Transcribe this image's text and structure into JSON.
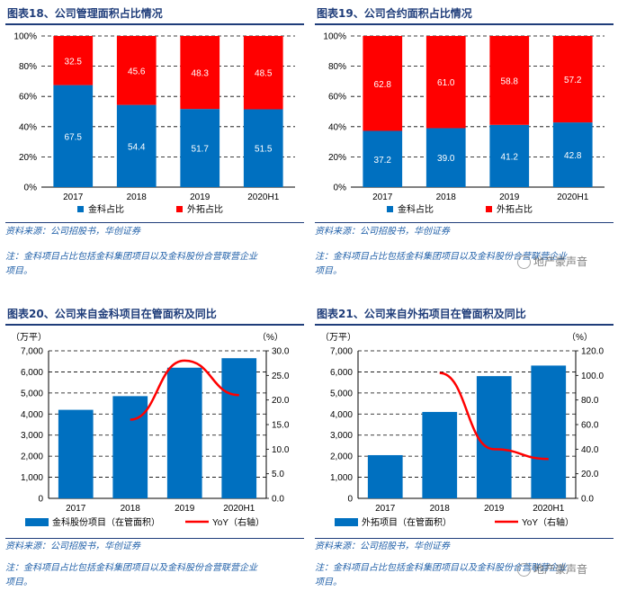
{
  "panels": [
    {
      "title": "图表18、公司管理面积占比情况",
      "source": "资料来源：公司招股书，华创证券",
      "note_line1": "注：金科项目占比包括金科集团项目以及金科股份合营联营企业",
      "note_line2": "项目。"
    },
    {
      "title": "图表19、公司合约面积占比情况",
      "source": "资料来源：公司招股书，华创证券",
      "note_line1": "注：金科项目占比包括金科集团项目以及金科股份合营联营企业",
      "note_line2": "项目。"
    },
    {
      "title": "图表20、公司来自金科项目在管面积及同比",
      "source": "资料来源：公司招股书，华创证券",
      "note_line1": "注：金科项目占比包括金科集团项目以及金科股份合营联营企业",
      "note_line2": "项目。"
    },
    {
      "title": "图表21、公司来自外拓项目在管面积及同比",
      "source": "资料来源：公司招股书，华创证券",
      "note_line1": "注：金科项目占比包括金科集团项目以及金科股份合营联营企业",
      "note_line2": "项目。"
    }
  ],
  "watermark": "地产豪声音",
  "colors": {
    "blue": "#0070c0",
    "red": "#ff0000",
    "navy": "#1f3d7a"
  },
  "chart_data": [
    {
      "type": "bar",
      "stacked": true,
      "title": "",
      "categories": [
        "2017",
        "2018",
        "2019",
        "2020H1"
      ],
      "series": [
        {
          "name": "金科占比",
          "values": [
            67.5,
            54.4,
            51.7,
            51.5
          ],
          "color": "#0070c0"
        },
        {
          "name": "外拓占比",
          "values": [
            32.5,
            45.6,
            48.3,
            48.5
          ],
          "color": "#ff0000"
        }
      ],
      "y_ticks": [
        "0%",
        "20%",
        "40%",
        "60%",
        "80%",
        "100%"
      ],
      "ylim": [
        0,
        100
      ],
      "grid": true,
      "legend": "bottom"
    },
    {
      "type": "bar",
      "stacked": true,
      "title": "",
      "categories": [
        "2017",
        "2018",
        "2019",
        "2020H1"
      ],
      "series": [
        {
          "name": "金科占比",
          "values": [
            37.2,
            39.0,
            41.2,
            42.8
          ],
          "color": "#0070c0"
        },
        {
          "name": "外拓占比",
          "values": [
            62.8,
            61.0,
            58.8,
            57.2
          ],
          "color": "#ff0000"
        }
      ],
      "y_ticks": [
        "0%",
        "20%",
        "40%",
        "60%",
        "80%",
        "100%"
      ],
      "ylim": [
        0,
        100
      ],
      "grid": true,
      "legend": "bottom"
    },
    {
      "type": "bar",
      "title": "",
      "categories": [
        "2017",
        "2018",
        "2019",
        "2020H1"
      ],
      "y_unit": "（万平）",
      "y2_unit": "（%）",
      "ylim": [
        0,
        7000
      ],
      "y_ticks": [
        "0",
        "1,000",
        "2,000",
        "3,000",
        "4,000",
        "5,000",
        "6,000",
        "7,000"
      ],
      "y2lim": [
        0,
        30
      ],
      "y2_ticks": [
        "0.0",
        "5.0",
        "10.0",
        "15.0",
        "20.0",
        "25.0",
        "30.0"
      ],
      "series": [
        {
          "name": "金科股份项目（在管面积）",
          "kind": "bar",
          "axis": "left",
          "values": [
            4200,
            4850,
            6200,
            6650
          ],
          "color": "#0070c0"
        },
        {
          "name": "YoY（右轴）",
          "kind": "line",
          "axis": "right",
          "values": [
            null,
            16.0,
            28.0,
            21.0
          ],
          "color": "#ff0000"
        }
      ],
      "grid": true,
      "legend": "bottom"
    },
    {
      "type": "bar",
      "title": "",
      "categories": [
        "2017",
        "2018",
        "2019",
        "2020H1"
      ],
      "y_unit": "（万平）",
      "y2_unit": "（%）",
      "ylim": [
        0,
        7000
      ],
      "y_ticks": [
        "0",
        "1,000",
        "2,000",
        "3,000",
        "4,000",
        "5,000",
        "6,000",
        "7,000"
      ],
      "y2lim": [
        0,
        120
      ],
      "y2_ticks": [
        "0.0",
        "20.0",
        "40.0",
        "60.0",
        "80.0",
        "100.0",
        "120.0"
      ],
      "series": [
        {
          "name": "外拓项目（在管面积）",
          "kind": "bar",
          "axis": "left",
          "values": [
            2050,
            4100,
            5800,
            6300
          ],
          "color": "#0070c0"
        },
        {
          "name": "YoY（右轴）",
          "kind": "line",
          "axis": "right",
          "values": [
            null,
            102.0,
            40.0,
            32.0
          ],
          "color": "#ff0000"
        }
      ],
      "grid": true,
      "legend": "bottom"
    }
  ]
}
